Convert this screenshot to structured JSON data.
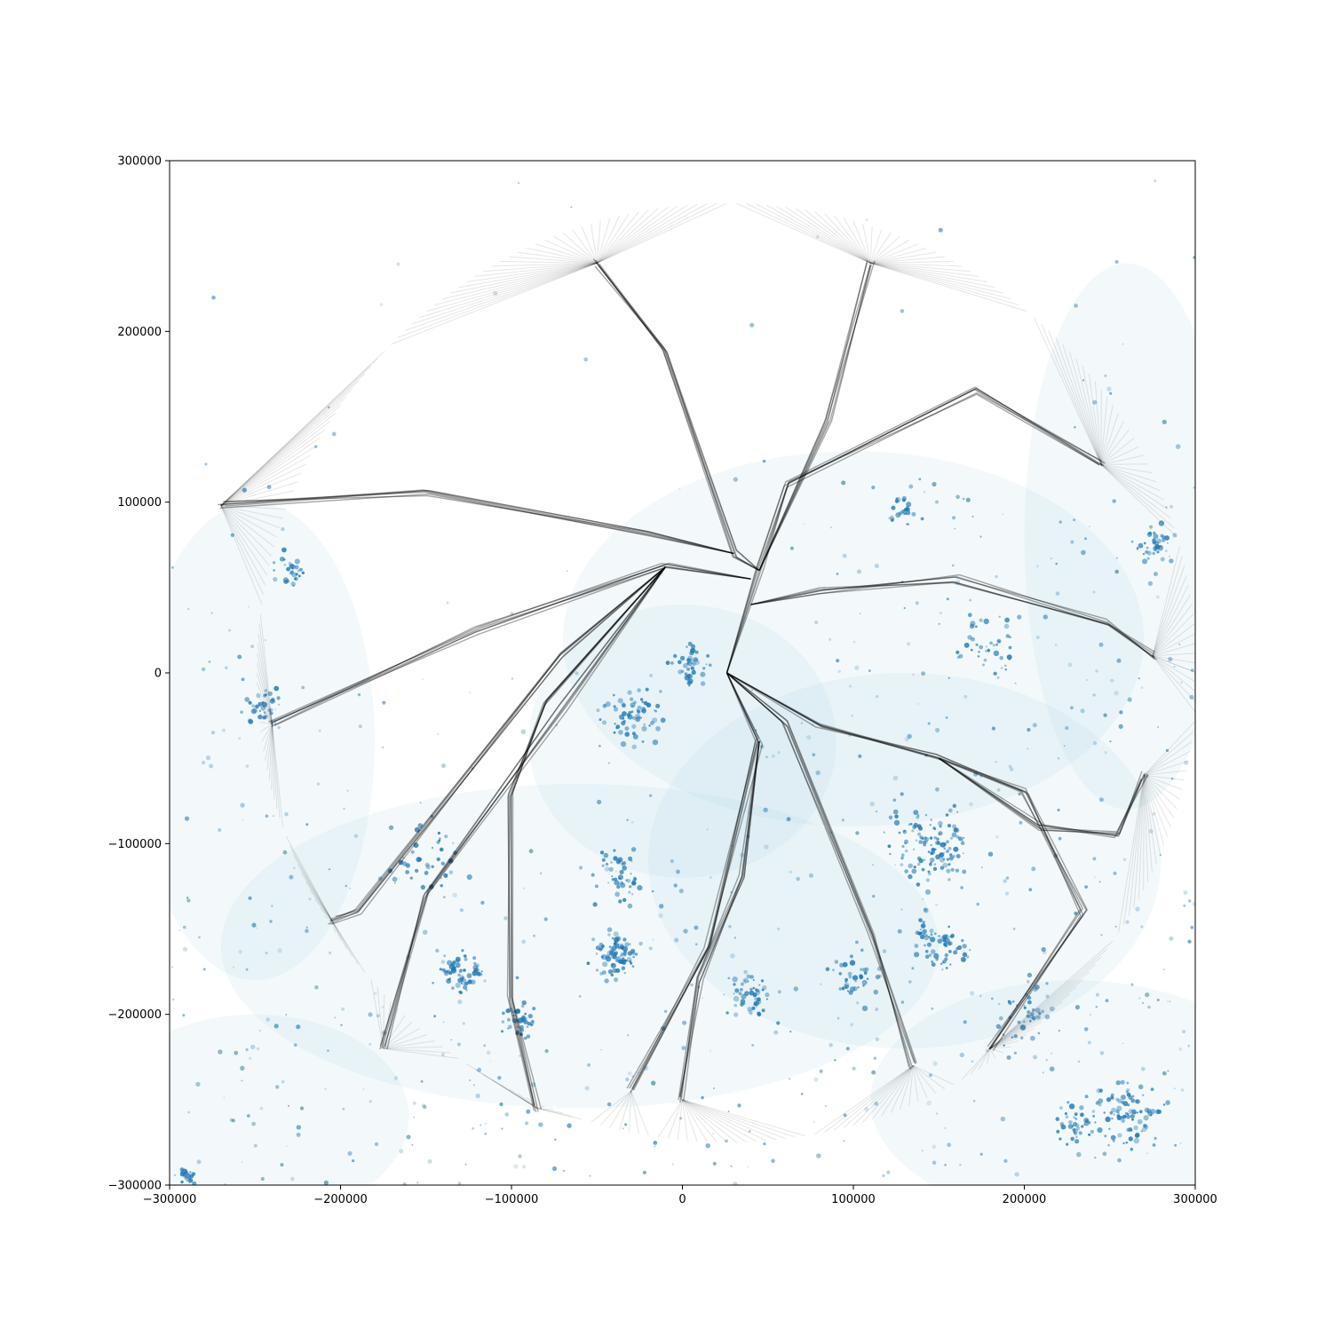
{
  "chart_data": {
    "type": "scatter",
    "title": "",
    "xlabel": "",
    "ylabel": "",
    "xlim": [
      -300000,
      300000
    ],
    "ylim": [
      -300000,
      300000
    ],
    "grid": false,
    "legend": "none",
    "x_ticks": [
      -300000,
      -200000,
      -100000,
      0,
      100000,
      200000,
      300000
    ],
    "y_ticks": [
      -300000,
      -200000,
      -100000,
      0,
      100000,
      200000,
      300000
    ],
    "x_tick_labels": [
      "−300000",
      "−200000",
      "−100000",
      "0",
      "100000",
      "200000",
      "300000"
    ],
    "y_tick_labels": [
      "−300000",
      "−200000",
      "−100000",
      "0",
      "100000",
      "200000",
      "300000"
    ],
    "colors": {
      "points": "#1f77b4",
      "points_faint": "#9ecae1",
      "tree": "#000000"
    },
    "tree_origin": [
      26000,
      0
    ],
    "circle_radius": 275000,
    "branches": [
      {
        "path": [
          [
            26000,
            0
          ],
          [
            45000,
            60000
          ],
          [
            60000,
            110000
          ],
          [
            170000,
            165000
          ],
          [
            245000,
            122000
          ]
        ]
      },
      {
        "path": [
          [
            45000,
            60000
          ],
          [
            85000,
            148000
          ],
          [
            110000,
            240000
          ]
        ]
      },
      {
        "path": [
          [
            45000,
            60000
          ],
          [
            30000,
            70000
          ],
          [
            -10000,
            190000
          ],
          [
            -50000,
            240000
          ]
        ]
      },
      {
        "path": [
          [
            30000,
            70000
          ],
          [
            -20000,
            82000
          ],
          [
            -150000,
            105000
          ],
          [
            -270000,
            98000
          ]
        ]
      },
      {
        "path": [
          [
            40000,
            55000
          ],
          [
            -10000,
            62000
          ],
          [
            -120000,
            25000
          ],
          [
            -240000,
            -30000
          ]
        ]
      },
      {
        "path": [
          [
            -10000,
            62000
          ],
          [
            -70000,
            10000
          ],
          [
            -190000,
            -140000
          ],
          [
            -205000,
            -145000
          ]
        ]
      },
      {
        "path": [
          [
            -10000,
            62000
          ],
          [
            -70000,
            -20000
          ],
          [
            -150000,
            -130000
          ],
          [
            -175000,
            -220000
          ]
        ]
      },
      {
        "path": [
          [
            -10000,
            62000
          ],
          [
            -80000,
            -18000
          ],
          [
            -100000,
            -70000
          ],
          [
            -100000,
            -190000
          ],
          [
            -85000,
            -255000
          ]
        ]
      },
      {
        "path": [
          [
            26000,
            0
          ],
          [
            45000,
            -40000
          ],
          [
            15000,
            -160000
          ],
          [
            -30000,
            -245000
          ]
        ]
      },
      {
        "path": [
          [
            45000,
            -40000
          ],
          [
            35000,
            -120000
          ],
          [
            10000,
            -180000
          ],
          [
            0,
            -250000
          ]
        ]
      },
      {
        "path": [
          [
            26000,
            0
          ],
          [
            60000,
            -30000
          ],
          [
            110000,
            -155000
          ],
          [
            135000,
            -230000
          ]
        ]
      },
      {
        "path": [
          [
            26000,
            0
          ],
          [
            80000,
            -30000
          ],
          [
            150000,
            -50000
          ],
          [
            200000,
            -70000
          ],
          [
            235000,
            -140000
          ],
          [
            180000,
            -220000
          ]
        ]
      },
      {
        "path": [
          [
            150000,
            -50000
          ],
          [
            210000,
            -90000
          ],
          [
            255000,
            -95000
          ],
          [
            270000,
            -60000
          ]
        ]
      },
      {
        "path": [
          [
            40000,
            40000
          ],
          [
            80000,
            48000
          ],
          [
            160000,
            55000
          ],
          [
            250000,
            30000
          ],
          [
            275000,
            10000
          ]
        ]
      }
    ],
    "point_clusters": [
      {
        "x": -40000,
        "y": -165000,
        "spread": 12000,
        "count": 80
      },
      {
        "x": -130000,
        "y": -175000,
        "spread": 12000,
        "count": 60
      },
      {
        "x": -95000,
        "y": -205000,
        "spread": 10000,
        "count": 40
      },
      {
        "x": -30000,
        "y": -25000,
        "spread": 15000,
        "count": 70
      },
      {
        "x": 5000,
        "y": 5000,
        "spread": 10000,
        "count": 40
      },
      {
        "x": 145000,
        "y": -100000,
        "spread": 22000,
        "count": 120
      },
      {
        "x": 150000,
        "y": -160000,
        "spread": 15000,
        "count": 70
      },
      {
        "x": 260000,
        "y": -260000,
        "spread": 18000,
        "count": 90
      },
      {
        "x": 230000,
        "y": -265000,
        "spread": 10000,
        "count": 40
      },
      {
        "x": 40000,
        "y": -190000,
        "spread": 12000,
        "count": 50
      },
      {
        "x": -230000,
        "y": 60000,
        "spread": 8000,
        "count": 30
      },
      {
        "x": -245000,
        "y": -20000,
        "spread": 10000,
        "count": 30
      },
      {
        "x": 130000,
        "y": 95000,
        "spread": 8000,
        "count": 25
      },
      {
        "x": 275000,
        "y": 75000,
        "spread": 10000,
        "count": 40
      },
      {
        "x": -290000,
        "y": -295000,
        "spread": 6000,
        "count": 25
      },
      {
        "x": -35000,
        "y": -120000,
        "spread": 14000,
        "count": 50
      },
      {
        "x": 100000,
        "y": -180000,
        "spread": 12000,
        "count": 40
      },
      {
        "x": 200000,
        "y": -200000,
        "spread": 15000,
        "count": 40
      },
      {
        "x": 180000,
        "y": 20000,
        "spread": 20000,
        "count": 40
      },
      {
        "x": -150000,
        "y": -110000,
        "spread": 20000,
        "count": 40
      }
    ]
  }
}
